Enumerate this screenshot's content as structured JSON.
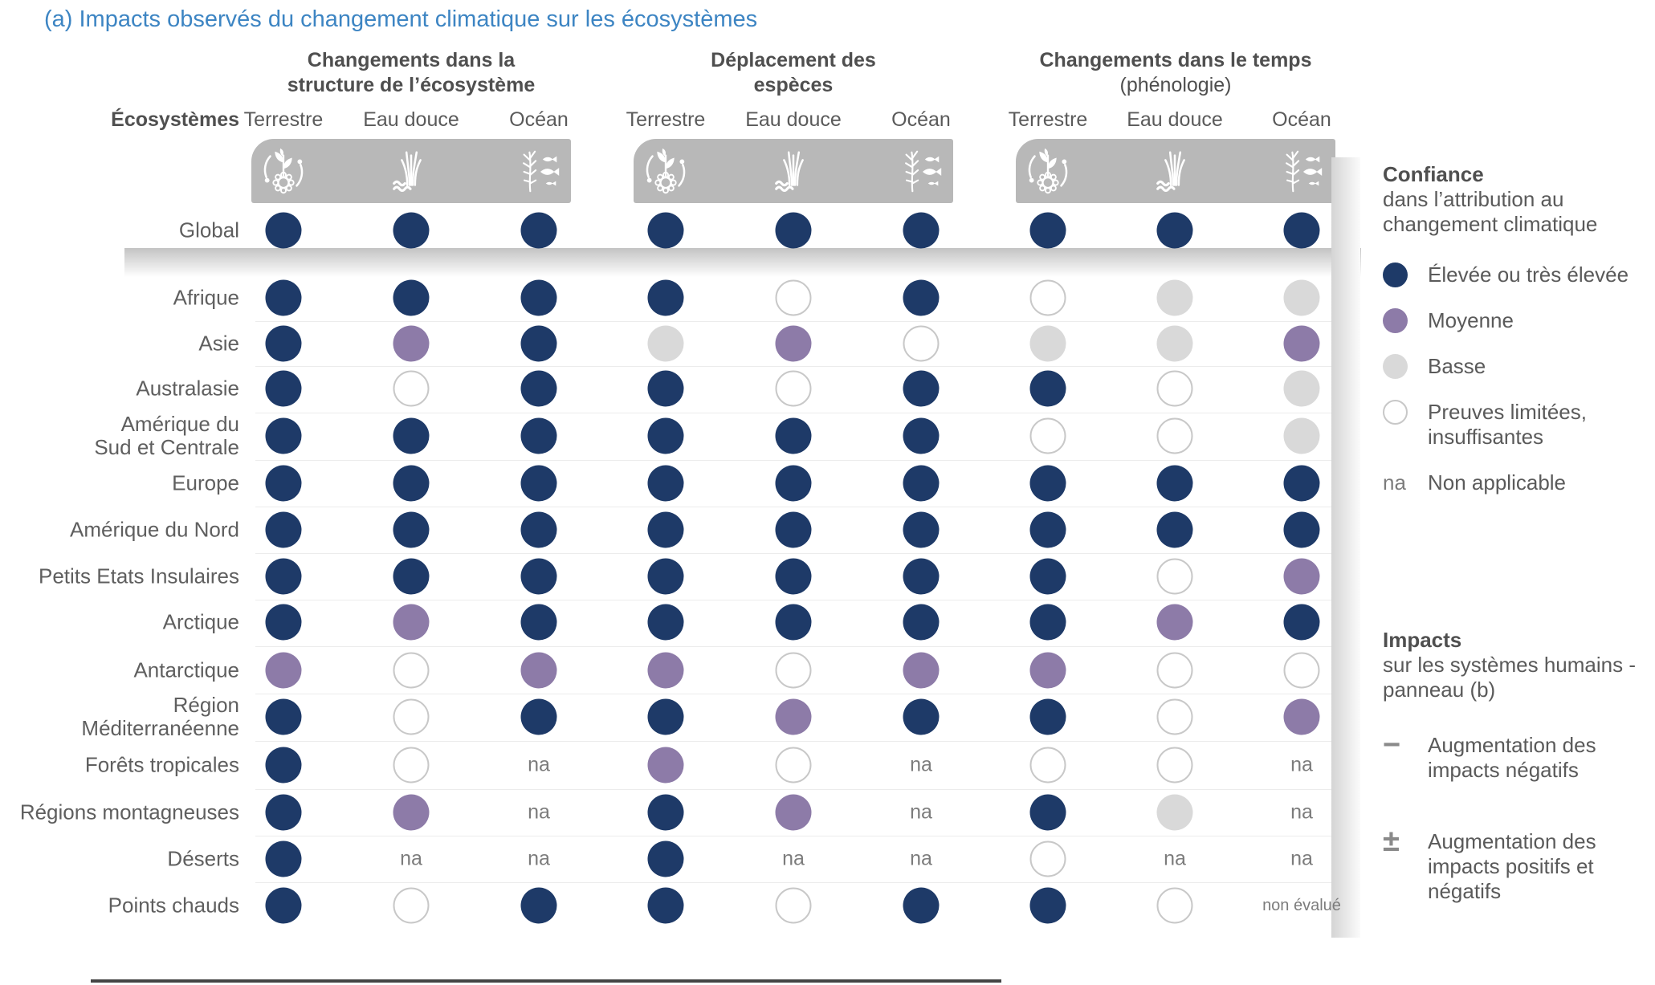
{
  "title": "(a) Impacts observés du changement climatique sur les écosystèmes",
  "colors": {
    "title_blue": "#3d85c3",
    "high": "#1e3a68",
    "medium": "#8d7ba8",
    "low": "#d9d9d9",
    "limited_outline": "#c8c8c8",
    "icon_band_gray": "#b8b8b8",
    "text_gray": "#5a5a5a"
  },
  "chart_data": {
    "type": "table",
    "title": "(a) Impacts observés du changement climatique sur les écosystèmes",
    "row_header": "Écosystèmes",
    "column_groups": [
      {
        "label": "Changements dans la\nstructure de l’écosystème",
        "sublabel": ""
      },
      {
        "label": "Déplacement des\nespèces",
        "sublabel": ""
      },
      {
        "label": "Changements dans le temps",
        "sublabel": "(phénologie)"
      }
    ],
    "subcolumns": [
      "Terrestre",
      "Eau douce",
      "Océan"
    ],
    "icons": [
      "terrestrial-icon",
      "freshwater-icon",
      "ocean-icon"
    ],
    "value_codes": {
      "high": "Élevée ou très élevée",
      "medium": "Moyenne",
      "low": "Basse",
      "limited": "Preuves limitées, insuffisantes",
      "na": "Non applicable",
      "not_evaluated": "non évalué"
    },
    "rows": [
      {
        "label": "Global",
        "values": [
          "high",
          "high",
          "high",
          "high",
          "high",
          "high",
          "high",
          "high",
          "high"
        ]
      },
      {
        "label": "Afrique",
        "values": [
          "high",
          "high",
          "high",
          "high",
          "limited",
          "high",
          "limited",
          "low",
          "low"
        ]
      },
      {
        "label": "Asie",
        "values": [
          "high",
          "medium",
          "high",
          "low",
          "medium",
          "limited",
          "low",
          "low",
          "medium"
        ]
      },
      {
        "label": "Australasie",
        "values": [
          "high",
          "limited",
          "high",
          "high",
          "limited",
          "high",
          "high",
          "limited",
          "low"
        ]
      },
      {
        "label": "Amérique du\nSud et Centrale",
        "values": [
          "high",
          "high",
          "high",
          "high",
          "high",
          "high",
          "limited",
          "limited",
          "low"
        ]
      },
      {
        "label": "Europe",
        "values": [
          "high",
          "high",
          "high",
          "high",
          "high",
          "high",
          "high",
          "high",
          "high"
        ]
      },
      {
        "label": "Amérique du Nord",
        "values": [
          "high",
          "high",
          "high",
          "high",
          "high",
          "high",
          "high",
          "high",
          "high"
        ]
      },
      {
        "label": "Petits Etats Insulaires",
        "values": [
          "high",
          "high",
          "high",
          "high",
          "high",
          "high",
          "high",
          "limited",
          "medium"
        ]
      },
      {
        "label": "Arctique",
        "values": [
          "high",
          "medium",
          "high",
          "high",
          "high",
          "high",
          "high",
          "medium",
          "high"
        ]
      },
      {
        "label": "Antarctique",
        "values": [
          "medium",
          "limited",
          "medium",
          "medium",
          "limited",
          "medium",
          "medium",
          "limited",
          "limited"
        ]
      },
      {
        "label": "Région\nMéditerranéenne",
        "values": [
          "high",
          "limited",
          "high",
          "high",
          "medium",
          "high",
          "high",
          "limited",
          "medium"
        ]
      },
      {
        "label": "Forêts tropicales",
        "values": [
          "high",
          "limited",
          "na",
          "medium",
          "limited",
          "na",
          "limited",
          "limited",
          "na"
        ]
      },
      {
        "label": "Régions montagneuses",
        "values": [
          "high",
          "medium",
          "na",
          "high",
          "medium",
          "na",
          "high",
          "low",
          "na"
        ]
      },
      {
        "label": "Déserts",
        "values": [
          "high",
          "na",
          "na",
          "high",
          "na",
          "na",
          "limited",
          "na",
          "na"
        ]
      },
      {
        "label": "Points chauds",
        "values": [
          "high",
          "limited",
          "high",
          "high",
          "limited",
          "high",
          "high",
          "limited",
          "not_evaluated"
        ]
      }
    ]
  },
  "cells": {
    "na_text": "na",
    "not_evaluated_text": "non évalué"
  },
  "legend_confidence": {
    "title": "Confiance",
    "subtitle": "dans l’attribution au changement climatique",
    "items": [
      {
        "code": "high",
        "label": "Élevée ou très élevée"
      },
      {
        "code": "medium",
        "label": "Moyenne"
      },
      {
        "code": "low",
        "label": "Basse"
      },
      {
        "code": "limited",
        "label": "Preuves limitées, insuffisantes"
      },
      {
        "code": "na",
        "label": "Non applicable"
      }
    ]
  },
  "legend_impacts": {
    "title": "Impacts",
    "subtitle": "sur les systèmes humains - panneau (b)",
    "items": [
      {
        "symbol": "−",
        "label": "Augmentation des impacts négatifs"
      },
      {
        "symbol": "±",
        "label": "Augmentation des impacts positifs et négatifs"
      }
    ]
  }
}
